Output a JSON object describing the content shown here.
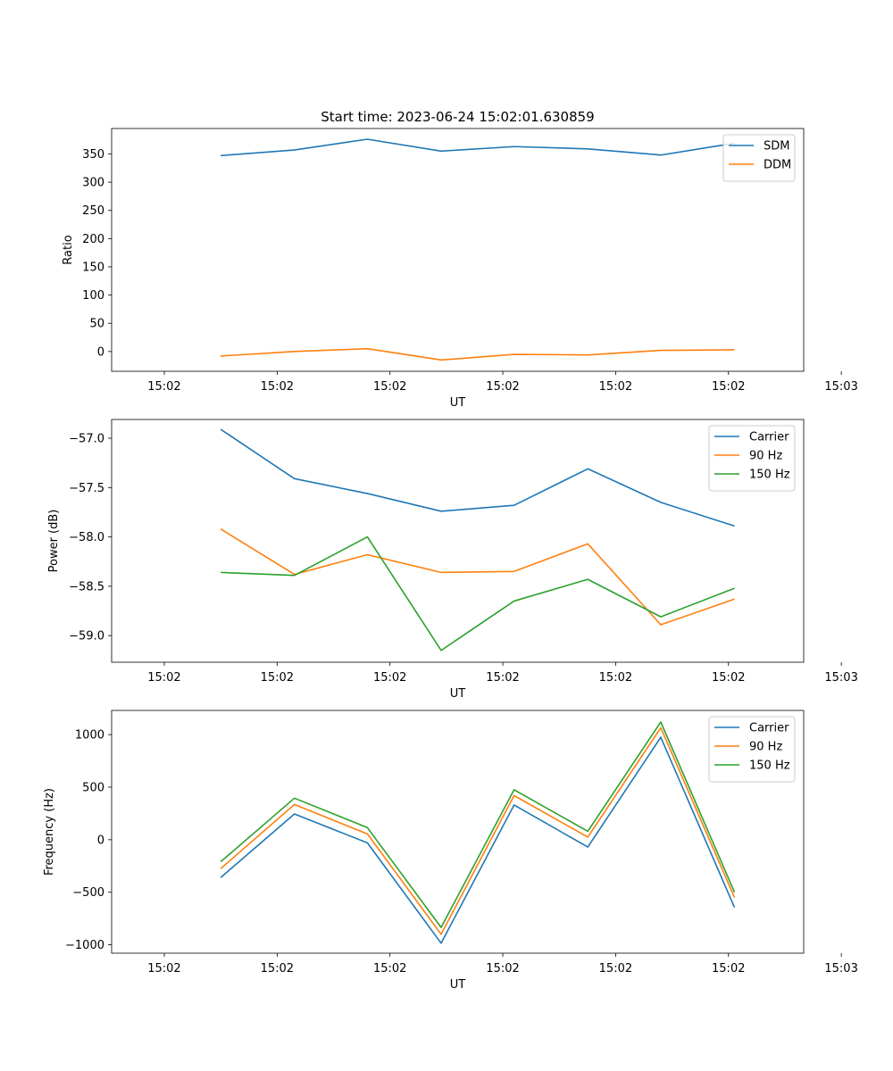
{
  "chart_data": [
    {
      "type": "line",
      "title": "Start time: 2023-06-24 15:02:01.630859",
      "xlabel": "UT",
      "ylabel": "Ratio",
      "ylim": [
        -35,
        395
      ],
      "xlim": [
        -0.7,
        8.5
      ],
      "x_ticks": [
        0,
        1.5,
        3,
        4.5,
        6,
        7.5,
        9
      ],
      "x_tick_labels": [
        "15:02",
        "15:02",
        "15:02",
        "15:02",
        "15:02",
        "15:02",
        "15:03"
      ],
      "y_ticks": [
        0,
        50,
        100,
        150,
        200,
        250,
        300,
        350
      ],
      "x": [
        0.75,
        1.73,
        2.7,
        3.68,
        4.65,
        5.63,
        6.6,
        7.58
      ],
      "grid": false,
      "legend_position": "top-right",
      "series": [
        {
          "name": "SDM",
          "color": "#1f77b4",
          "values": [
            347,
            357,
            376,
            355,
            363,
            359,
            348,
            369
          ]
        },
        {
          "name": "DDM",
          "color": "#ff7f0e",
          "values": [
            -8,
            0,
            5,
            -15,
            -5,
            -6,
            2,
            3
          ]
        }
      ]
    },
    {
      "type": "line",
      "title": "",
      "xlabel": "UT",
      "ylabel": "Power (dB)",
      "ylim": [
        -59.27,
        -56.81
      ],
      "xlim": [
        -0.7,
        8.5
      ],
      "x_ticks": [
        0,
        1.5,
        3,
        4.5,
        6,
        7.5,
        9
      ],
      "x_tick_labels": [
        "15:02",
        "15:02",
        "15:02",
        "15:02",
        "15:02",
        "15:02",
        "15:03"
      ],
      "y_ticks": [
        -59.0,
        -58.5,
        -58.0,
        -57.5,
        -57.0
      ],
      "y_tick_labels": [
        "−59.0",
        "−58.5",
        "−58.0",
        "−57.5",
        "−57.0"
      ],
      "x": [
        0.75,
        1.73,
        2.7,
        3.68,
        4.65,
        5.63,
        6.6,
        7.58
      ],
      "grid": false,
      "legend_position": "top-right",
      "series": [
        {
          "name": "Carrier",
          "color": "#1f77b4",
          "values": [
            -56.91,
            -57.41,
            -57.56,
            -57.74,
            -57.68,
            -57.31,
            -57.65,
            -57.89
          ]
        },
        {
          "name": "90 Hz",
          "color": "#ff7f0e",
          "values": [
            -57.92,
            -58.38,
            -58.18,
            -58.36,
            -58.35,
            -58.07,
            -58.89,
            -58.63
          ]
        },
        {
          "name": "150 Hz",
          "color": "#2ca02c",
          "values": [
            -58.36,
            -58.39,
            -58.0,
            -59.15,
            -58.65,
            -58.43,
            -58.81,
            -58.52
          ]
        }
      ]
    },
    {
      "type": "line",
      "title": "",
      "xlabel": "UT",
      "ylabel": "Frequency (Hz)",
      "ylim": [
        -1080,
        1230
      ],
      "xlim": [
        -0.7,
        8.5
      ],
      "x_ticks": [
        0,
        1.5,
        3,
        4.5,
        6,
        7.5,
        9
      ],
      "x_tick_labels": [
        "15:02",
        "15:02",
        "15:02",
        "15:02",
        "15:02",
        "15:02",
        "15:03"
      ],
      "y_ticks": [
        -1000,
        -500,
        0,
        500,
        1000
      ],
      "y_tick_labels": [
        "−1000",
        "−500",
        "0",
        "500",
        "1000"
      ],
      "x": [
        0.75,
        1.73,
        2.7,
        3.68,
        4.65,
        5.63,
        6.6,
        7.58
      ],
      "grid": false,
      "legend_position": "top-right",
      "series": [
        {
          "name": "Carrier",
          "color": "#1f77b4",
          "values": [
            -360,
            245,
            -30,
            -985,
            330,
            -70,
            975,
            -645
          ]
        },
        {
          "name": "90 Hz",
          "color": "#ff7f0e",
          "values": [
            -275,
            335,
            55,
            -900,
            420,
            25,
            1065,
            -550
          ]
        },
        {
          "name": "150 Hz",
          "color": "#2ca02c",
          "values": [
            -210,
            395,
            115,
            -835,
            475,
            80,
            1120,
            -500
          ]
        }
      ]
    }
  ]
}
